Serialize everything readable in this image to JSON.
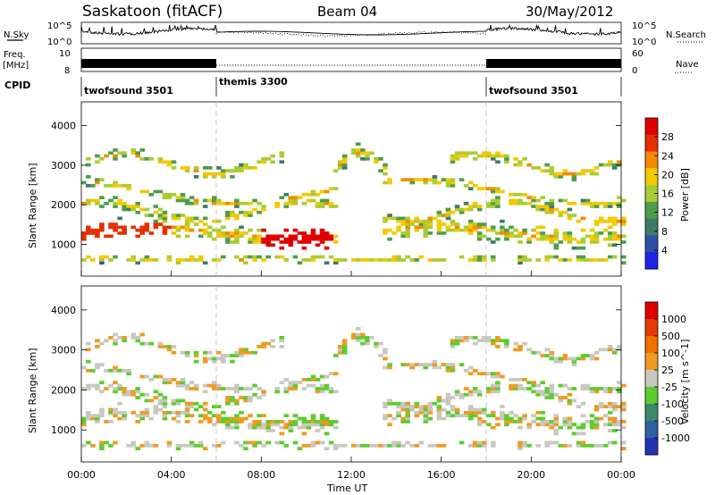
{
  "header": {
    "station": "Saskatoon (fitACF)",
    "beam": "Beam 04",
    "date": "30/May/2012"
  },
  "side_labels": {
    "nsky": "N.Sky",
    "freq": "Freq.",
    "freq_unit": "[MHz]",
    "cpid": "CPID",
    "nsearch": "N.Search",
    "nave": "Nave"
  },
  "chart_data": [
    {
      "type": "line",
      "panel": "noise",
      "series": [
        {
          "name": "N.Sky",
          "style": "solid"
        },
        {
          "name": "N.Search",
          "style": "dotted"
        }
      ],
      "y_left_ticks": [
        "10^5",
        "10^0"
      ],
      "y_right_ticks": [
        "10^5",
        "10^0"
      ]
    },
    {
      "type": "line",
      "panel": "frequency",
      "y_left_ticks": [
        "10",
        "8"
      ],
      "y_right_ticks": [
        "60",
        "0"
      ],
      "segments": [
        {
          "start_h": 0,
          "end_h": 6,
          "freq_state": "dense"
        },
        {
          "start_h": 6,
          "end_h": 18,
          "freq_state": "flat"
        },
        {
          "start_h": 18,
          "end_h": 24,
          "freq_state": "dense"
        }
      ]
    },
    {
      "type": "table",
      "panel": "cpid",
      "items": [
        {
          "label": "twofsound 3501",
          "start_h": 0
        },
        {
          "label": "themis 3300",
          "start_h": 6
        },
        {
          "label": "twofsound 3501",
          "start_h": 18
        }
      ]
    },
    {
      "type": "heatmap",
      "panel": "power",
      "ylabel": "Slant Range [km]",
      "yticks": [
        1000,
        2000,
        3000,
        4000
      ],
      "ylim": [
        200,
        4600
      ],
      "xlim": [
        0,
        24
      ],
      "colorbar": {
        "label": "Power [dB]",
        "ticks": [
          "4",
          "8",
          "12",
          "16",
          "20",
          "24",
          "28"
        ],
        "colors": [
          "#1f25e8",
          "#2d4fa6",
          "#3d7a6a",
          "#4c9e4a",
          "#aacc33",
          "#f5c800",
          "#f48a00",
          "#e53000",
          "#e00000"
        ]
      }
    },
    {
      "type": "heatmap",
      "panel": "velocity",
      "ylabel": "Slant Range [km]",
      "yticks": [
        1000,
        2000,
        3000,
        4000
      ],
      "ylim": [
        200,
        4600
      ],
      "xlim": [
        0,
        24
      ],
      "xlabel": "Time UT",
      "xticks": [
        "00:00",
        "04:00",
        "08:00",
        "12:00",
        "16:00",
        "20:00",
        "00:00"
      ],
      "colorbar": {
        "label": "Velocity [m s^-1]",
        "ticks": [
          "1000",
          "500",
          "100",
          "25",
          "-25",
          "-100",
          "-500",
          "-1000"
        ],
        "colors": [
          "#2332b4",
          "#2e63a0",
          "#3c8a6a",
          "#5ccd2e",
          "#c8c8c0",
          "#f09a20",
          "#f07000",
          "#e53a00",
          "#e00000"
        ]
      }
    }
  ]
}
